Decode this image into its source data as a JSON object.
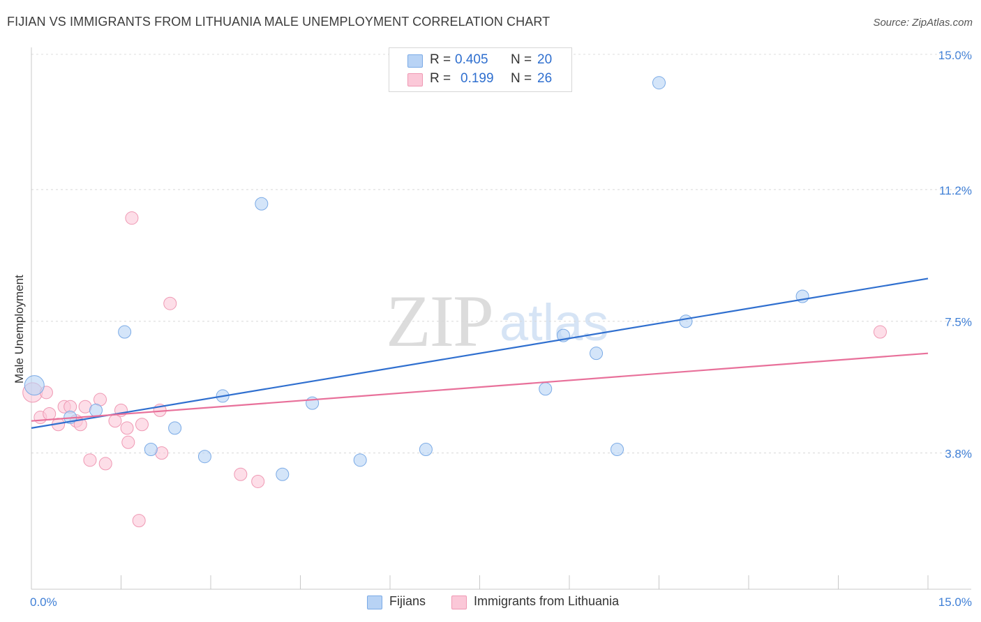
{
  "title": "FIJIAN VS IMMIGRANTS FROM LITHUANIA MALE UNEMPLOYMENT CORRELATION CHART",
  "source": "Source: ZipAtlas.com",
  "watermark": {
    "zip": "ZIP",
    "atlas": "atlas"
  },
  "legend": {
    "r_label": "R =",
    "n_label": "N =",
    "series": [
      {
        "name": "Fijians",
        "r": "0.405",
        "n": "20",
        "fill": "#b8d3f5",
        "stroke": "#7aaae6"
      },
      {
        "name": "Immigrants from Lithuania",
        "r": "0.199",
        "n": "26",
        "fill": "#fbc8d8",
        "stroke": "#ef98b3"
      }
    ]
  },
  "chart_data": {
    "type": "scatter",
    "title": "FIJIAN VS IMMIGRANTS FROM LITHUANIA MALE UNEMPLOYMENT CORRELATION CHART",
    "xlabel": "",
    "ylabel": "Male Unemployment",
    "xlim": [
      0,
      15
    ],
    "ylim": [
      0,
      15.5
    ],
    "x_tick_labels": [
      "0.0%",
      "15.0%"
    ],
    "y_ticks": [
      {
        "value": 3.8,
        "label": "3.8%"
      },
      {
        "value": 7.5,
        "label": "7.5%"
      },
      {
        "value": 11.2,
        "label": "11.2%"
      },
      {
        "value": 15.0,
        "label": "15.0%"
      }
    ],
    "grid": true,
    "series": [
      {
        "name": "Fijians",
        "color": "#2f6fcf",
        "fill": "#b8d3f5",
        "stroke": "#7aaae6",
        "points": [
          [
            0.05,
            5.7,
            14
          ],
          [
            0.65,
            4.8,
            9
          ],
          [
            1.08,
            5.0,
            9
          ],
          [
            1.56,
            7.2,
            9
          ],
          [
            2.0,
            3.9,
            9
          ],
          [
            2.4,
            4.5,
            9
          ],
          [
            2.9,
            3.7,
            9
          ],
          [
            3.2,
            5.4,
            9
          ],
          [
            3.85,
            10.8,
            9
          ],
          [
            4.2,
            3.2,
            9
          ],
          [
            4.7,
            5.2,
            9
          ],
          [
            5.5,
            3.6,
            9
          ],
          [
            6.6,
            3.9,
            9
          ],
          [
            8.6,
            5.6,
            9
          ],
          [
            8.9,
            7.1,
            9
          ],
          [
            9.45,
            6.6,
            9
          ],
          [
            9.8,
            3.9,
            9
          ],
          [
            10.5,
            14.2,
            9
          ],
          [
            10.95,
            7.5,
            9
          ],
          [
            12.9,
            8.2,
            9
          ]
        ],
        "trend": {
          "x": [
            0,
            15
          ],
          "y": [
            4.5,
            8.7
          ]
        }
      },
      {
        "name": "Immigrants from Lithuania",
        "color": "#e8709a",
        "fill": "#fbc8d8",
        "stroke": "#ef98b3",
        "points": [
          [
            0.02,
            5.5,
            14
          ],
          [
            0.15,
            4.8,
            9
          ],
          [
            0.25,
            5.5,
            9
          ],
          [
            0.3,
            4.9,
            9
          ],
          [
            0.45,
            4.6,
            9
          ],
          [
            0.55,
            5.1,
            9
          ],
          [
            0.65,
            5.1,
            9
          ],
          [
            0.75,
            4.7,
            9
          ],
          [
            0.82,
            4.6,
            9
          ],
          [
            0.9,
            5.1,
            9
          ],
          [
            0.98,
            3.6,
            9
          ],
          [
            1.15,
            5.3,
            9
          ],
          [
            1.24,
            3.5,
            9
          ],
          [
            1.4,
            4.7,
            9
          ],
          [
            1.5,
            5.0,
            9
          ],
          [
            1.6,
            4.5,
            9
          ],
          [
            1.62,
            4.1,
            9
          ],
          [
            1.68,
            10.4,
            9
          ],
          [
            1.8,
            1.9,
            9
          ],
          [
            1.85,
            4.6,
            9
          ],
          [
            2.15,
            5.0,
            9
          ],
          [
            2.18,
            3.8,
            9
          ],
          [
            2.32,
            8.0,
            9
          ],
          [
            3.5,
            3.2,
            9
          ],
          [
            3.79,
            3.0,
            9
          ],
          [
            14.2,
            7.2,
            9
          ]
        ],
        "trend": {
          "x": [
            0,
            15
          ],
          "y": [
            4.7,
            6.6
          ]
        }
      }
    ]
  }
}
